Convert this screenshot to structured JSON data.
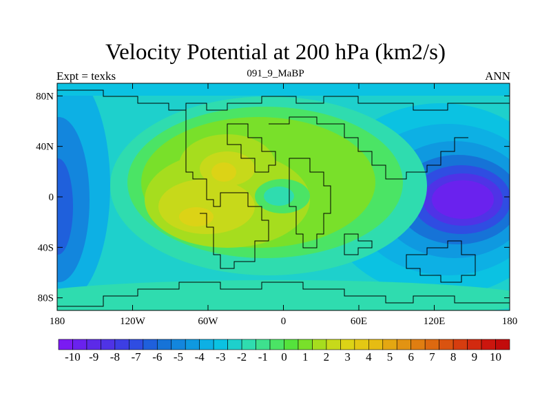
{
  "header": {
    "title": "Velocity Potential at 200 hPa (km2/s)",
    "subtitle": "091_9_MaBP",
    "left_label": "Expt = texks",
    "right_label": "ANN"
  },
  "colors": {
    "palette": [
      "#7a1bf2",
      "#6a22ee",
      "#5c2ae8",
      "#4f33e6",
      "#3d3ee4",
      "#2f4de2",
      "#1f60dc",
      "#1673d7",
      "#1386dd",
      "#0f99e0",
      "#0db0e4",
      "#0bc2e2",
      "#1ed0cc",
      "#2fdcaf",
      "#3ee08e",
      "#4be465",
      "#55e23c",
      "#79e02a",
      "#a6dd1e",
      "#c7d91a",
      "#dcd316",
      "#e3c814",
      "#e6bc13",
      "#e4a712",
      "#e29312",
      "#e07e11",
      "#dd6910",
      "#da5310",
      "#d63d0f",
      "#d22a0f",
      "#cb160e",
      "#c20b0b"
    ]
  },
  "chart_data": {
    "type": "contour",
    "variable": "Velocity Potential at 200 hPa",
    "units": "km2/s",
    "x_axis": {
      "range": [
        -180,
        180
      ],
      "ticks": [
        -180,
        -120,
        -60,
        0,
        60,
        120,
        180
      ],
      "tick_labels": [
        "180",
        "120W",
        "60W",
        "0",
        "60E",
        "120E",
        "180"
      ]
    },
    "y_axis": {
      "range": [
        -90,
        90
      ],
      "ticks": [
        80,
        40,
        0,
        -40,
        -80
      ],
      "tick_labels": [
        "80N",
        "40N",
        "0",
        "40S",
        "80S"
      ]
    },
    "colorbar": {
      "levels": [
        -10,
        -9,
        -8,
        -7,
        -6,
        -5,
        -4,
        -3,
        -2,
        -1,
        0,
        1,
        2,
        3,
        4,
        5,
        6,
        7,
        8,
        9,
        10
      ],
      "labels": [
        "-10",
        "-9",
        "-8",
        "-7",
        "-6",
        "-5",
        "-4",
        "-3",
        "-2",
        "-1",
        "0",
        "1",
        "2",
        "3",
        "4",
        "5",
        "6",
        "7",
        "8",
        "9",
        "10"
      ],
      "placement": "bottom"
    },
    "features": [
      {
        "name": "minimum",
        "lon": 145,
        "lat": 0,
        "value": -7.5
      },
      {
        "name": "minimum",
        "lon": -180,
        "lat": -15,
        "value": -5
      },
      {
        "name": "maximum",
        "lon": -65,
        "lat": -15,
        "value": 4.5
      },
      {
        "name": "maximum",
        "lon": -40,
        "lat": 20,
        "value": 4.5
      }
    ]
  }
}
